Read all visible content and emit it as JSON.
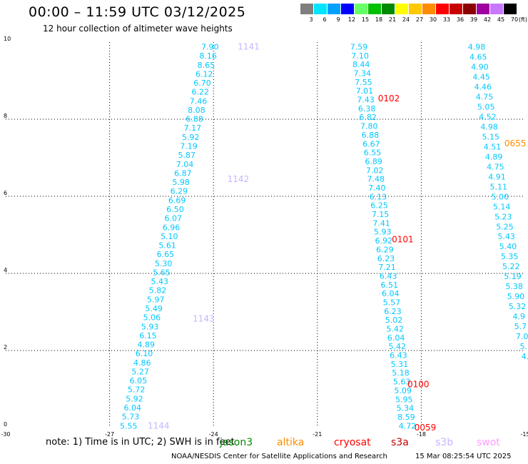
{
  "header": {
    "title": "00:00 – 11:59 UTC 03/12/2025",
    "subtitle": "12 hour collection of altimeter wave heights"
  },
  "colorbar": {
    "unit_label": "(ft)",
    "bins": [
      {
        "label": "3",
        "color": "#7f7f7f"
      },
      {
        "label": "6",
        "color": "#00e5ff"
      },
      {
        "label": "9",
        "color": "#00a0ff"
      },
      {
        "label": "12",
        "color": "#0000ff"
      },
      {
        "label": "15",
        "color": "#66ff66"
      },
      {
        "label": "18",
        "color": "#00c000"
      },
      {
        "label": "21",
        "color": "#008a00"
      },
      {
        "label": "24",
        "color": "#ffff00"
      },
      {
        "label": "27",
        "color": "#ffc800"
      },
      {
        "label": "30",
        "color": "#ff8c00"
      },
      {
        "label": "33",
        "color": "#ff0000"
      },
      {
        "label": "36",
        "color": "#c80000"
      },
      {
        "label": "39",
        "color": "#8b0000"
      },
      {
        "label": "42",
        "color": "#a000a0"
      },
      {
        "label": "45",
        "color": "#c878ff"
      },
      {
        "label": "70",
        "color": "#000000"
      }
    ]
  },
  "chart_data": {
    "type": "scatter",
    "title": "12 hour collection of altimeter wave heights",
    "xlabel": "",
    "ylabel": "",
    "xlim": [
      -30,
      -15
    ],
    "ylim": [
      0,
      10
    ],
    "x_ticks": [
      "-30",
      "-27",
      "-24",
      "-21",
      "-18",
      "-15"
    ],
    "y_ticks": [
      "0",
      "2",
      "4",
      "6",
      "8",
      "10"
    ],
    "grid": true,
    "point_color": "#00c8ff",
    "tracks": [
      {
        "name": "track-left",
        "lon_start": -26.45,
        "lat_start": 0.05,
        "lon_end": -24.1,
        "lat_end": 9.88,
        "values": [
          "5.55",
          "5.73",
          "6.04",
          "5.92",
          "5.72",
          "6.05",
          "5.27",
          "4.86",
          "6.10",
          "4.89",
          "6.15",
          "5.93",
          "5.06",
          "5.49",
          "5.97",
          "5.82",
          "5.43",
          "5.65",
          "5.30",
          "6.65",
          "5.61",
          "5.10",
          "6.96",
          "6.07",
          "6.50",
          "6.69",
          "6.29",
          "5.98",
          "6.87",
          "7.04",
          "5.87",
          "7.19",
          "5.92",
          "7.17",
          "6.88",
          "8.08",
          "7.46",
          "6.22",
          "6.70",
          "6.12",
          "8.65",
          "8.16",
          "7.90"
        ]
      },
      {
        "name": "track-middle",
        "lon_start": -18.4,
        "lat_start": 0.05,
        "lon_end": -19.8,
        "lat_end": 9.88,
        "values": [
          "4.72",
          "8.59",
          "5.34",
          "5.95",
          "5.09",
          "5.63",
          "5.18",
          "5.31",
          "6.43",
          "5.42",
          "6.04",
          "5.42",
          "5.02",
          "6.23",
          "5.57",
          "6.04",
          "6.51",
          "6.43",
          "7.21",
          "6.23",
          "6.29",
          "6.92",
          "5.93",
          "7.41",
          "7.15",
          "6.25",
          "6.13",
          "7.40",
          "7.48",
          "7.02",
          "6.89",
          "6.55",
          "6.67",
          "6.88",
          "7.80",
          "6.82",
          "6.38",
          "7.43",
          "7.01",
          "7.55",
          "7.34",
          "8.44",
          "7.10",
          "7.59"
        ]
      },
      {
        "name": "track-right",
        "lon_start": -15.0,
        "lat_start": 1.85,
        "lon_end": -16.4,
        "lat_end": 9.88,
        "values": [
          "4.",
          "5.",
          "7.0",
          "5.7",
          "4.9",
          "5.32",
          "5.90",
          "5.38",
          "5.19",
          "5.22",
          "5.35",
          "5.40",
          "5.43",
          "5.25",
          "5.23",
          "5.14",
          "5.00",
          "5.11",
          "4.91",
          "4.75",
          "4.89",
          "4.51",
          "5.15",
          "4.98",
          "4.52",
          "5.05",
          "4.75",
          "4.46",
          "4.45",
          "4.90",
          "4.65",
          "4.98"
        ]
      }
    ],
    "time_labels": [
      {
        "text": "1141",
        "lon": -23.3,
        "lat": 9.88,
        "color": "#c8b4ff"
      },
      {
        "text": "1142",
        "lon": -23.6,
        "lat": 6.44,
        "color": "#c8b4ff"
      },
      {
        "text": "1143",
        "lon": -24.6,
        "lat": 2.82,
        "color": "#c8b4ff"
      },
      {
        "text": "1144",
        "lon": -25.9,
        "lat": 0.05,
        "color": "#c8b4ff"
      },
      {
        "text": "0102",
        "lon": -19.25,
        "lat": 8.54,
        "color": "#ff0000"
      },
      {
        "text": "0101",
        "lon": -18.85,
        "lat": 4.88,
        "color": "#ff0000"
      },
      {
        "text": "0100",
        "lon": -18.4,
        "lat": 1.12,
        "color": "#ff0000"
      },
      {
        "text": "0059",
        "lon": -18.2,
        "lat": 0.0,
        "color": "#ff0000"
      },
      {
        "text": "0655",
        "lon": -15.6,
        "lat": 7.37,
        "color": "#ff8c00"
      }
    ]
  },
  "footer": {
    "note": "note:  1) Time is in UTC;  2) SWH is in feet",
    "satellites": [
      {
        "name": "jason3",
        "color": "#008a00"
      },
      {
        "name": "altika",
        "color": "#ff8c00"
      },
      {
        "name": "cryosat",
        "color": "#ff0000"
      },
      {
        "name": "s3a",
        "color": "#c80000"
      },
      {
        "name": "s3b",
        "color": "#c8b4ff"
      },
      {
        "name": "swot",
        "color": "#ff9cff"
      }
    ],
    "credit": "NOAA/NESDIS Center for Satellite Applications and Research",
    "timestamp": "15 Mar 08:25:54 UTC 2025"
  }
}
